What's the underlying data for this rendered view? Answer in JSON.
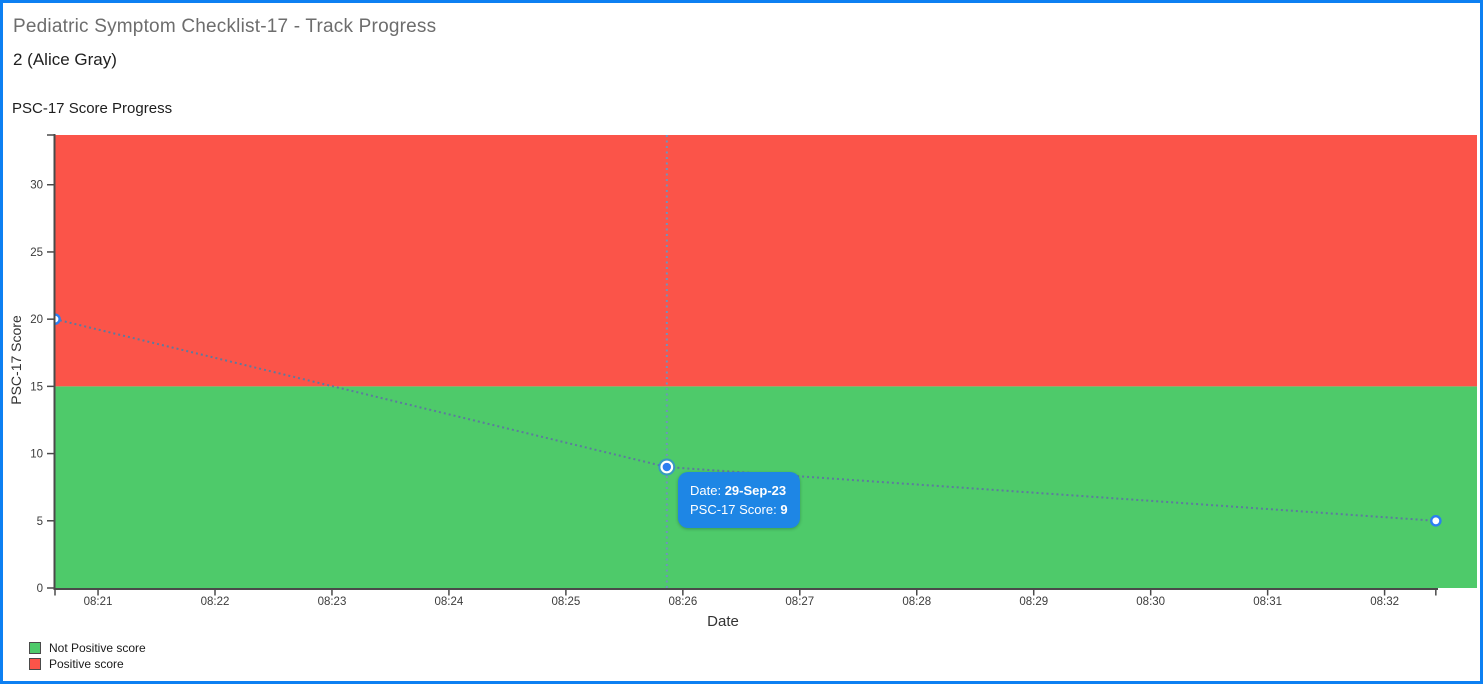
{
  "header": {
    "title": "Pediatric Symptom Checklist-17 - Track Progress",
    "patient": "2 (Alice Gray)"
  },
  "tooltip": {
    "date_label": "Date:",
    "date_value": "29-Sep-23",
    "score_label": "PSC-17 Score:",
    "score_value": "9"
  },
  "colors": {
    "page_border": "#0d80f2",
    "tooltip_bg": "#1e86e5",
    "not_positive_green": "#4eca6a",
    "positive_red": "#fb5449",
    "series_line": "#5d7a9e",
    "marker_blue": "#2c7ef0",
    "crosshair": "#6e94bb",
    "axis": "#4a4a4a",
    "tick_label": "#3c3c3c"
  },
  "chart_data": {
    "type": "line",
    "title": "PSC-17 Score Progress",
    "xlabel": "Date",
    "ylabel": "PSC-17 Score",
    "ylim": [
      0,
      33.7
    ],
    "yticks": [
      0,
      5,
      10,
      15,
      20,
      25,
      30
    ],
    "xtick_labels": [
      "08:21",
      "08:22",
      "08:23",
      "08:24",
      "08:25",
      "08:26",
      "08:27",
      "08:28",
      "08:29",
      "08:30",
      "08:31",
      "08:32"
    ],
    "xtick_minutes": [
      21,
      22,
      23,
      24,
      25,
      26,
      27,
      28,
      29,
      30,
      31,
      32
    ],
    "edge_tick_minutes": [
      20.632,
      32.438
    ],
    "x_range_minutes": [
      20.632,
      32.79
    ],
    "grid": false,
    "legend_position": "bottom-left",
    "bands": [
      {
        "name": "Not Positive score",
        "from": 0,
        "to": 15,
        "color": "#4eca6a"
      },
      {
        "name": "Positive score",
        "from": 15,
        "to": 33.7,
        "color": "#fb5449"
      }
    ],
    "series": [
      {
        "name": "PSC-17 Score",
        "color": "#5d7a9e",
        "points": [
          {
            "time": "08:20",
            "minute": 20.632,
            "value": 20
          },
          {
            "time": "08:26",
            "minute": 25.863,
            "value": 9,
            "hovered": true,
            "date": "29-Sep-23"
          },
          {
            "time": "08:32",
            "minute": 32.438,
            "value": 5
          }
        ]
      }
    ],
    "crosshair_minute": 25.863,
    "legend": [
      {
        "label": "Not Positive score",
        "color": "#4eca6a"
      },
      {
        "label": "Positive score",
        "color": "#fb5449"
      }
    ]
  }
}
